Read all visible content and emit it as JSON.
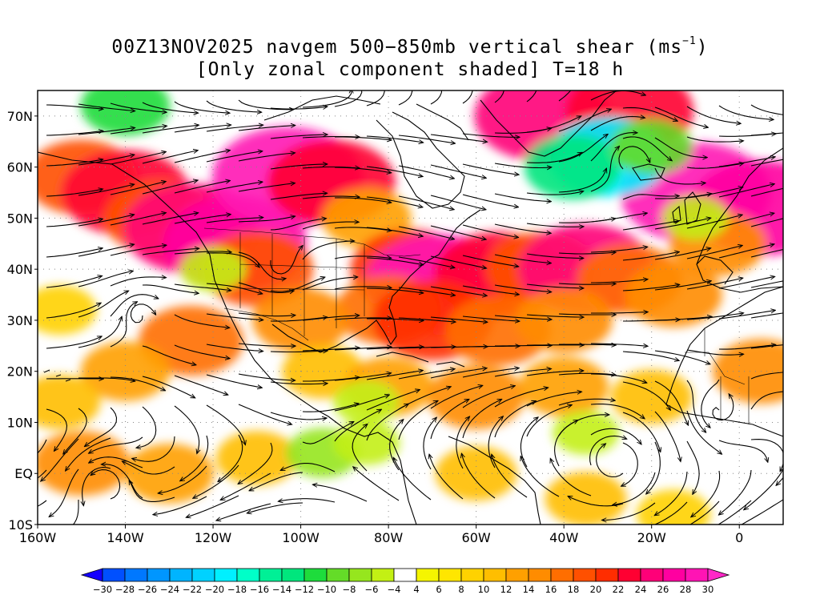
{
  "title": {
    "line1_prefix": "00Z13NOV2025 navgem 500−850mb vertical shear (ms",
    "line1_sup": "−1",
    "line1_suffix": ")",
    "line2": "[Only zonal component shaded] T=18 h"
  },
  "map": {
    "lon_range": [
      -160,
      10
    ],
    "lat_range": [
      -10,
      75
    ],
    "lat_labels": [
      {
        "lat": 70,
        "text": "70N"
      },
      {
        "lat": 60,
        "text": "60N"
      },
      {
        "lat": 50,
        "text": "50N"
      },
      {
        "lat": 40,
        "text": "40N"
      },
      {
        "lat": 30,
        "text": "30N"
      },
      {
        "lat": 20,
        "text": "20N"
      },
      {
        "lat": 10,
        "text": "10N"
      },
      {
        "lat": 0,
        "text": "EQ"
      },
      {
        "lat": -10,
        "text": "10S"
      }
    ],
    "lon_labels": [
      {
        "lon": -160,
        "text": "160W"
      },
      {
        "lon": -140,
        "text": "140W"
      },
      {
        "lon": -120,
        "text": "120W"
      },
      {
        "lon": -100,
        "text": "100W"
      },
      {
        "lon": -80,
        "text": "80W"
      },
      {
        "lon": -60,
        "text": "60W"
      },
      {
        "lon": -40,
        "text": "40W"
      },
      {
        "lon": -20,
        "text": "20W"
      },
      {
        "lon": 0,
        "text": "0"
      }
    ],
    "gridlines": "dotted every 10°"
  },
  "colorbar": {
    "labels": [
      "−30",
      "−28",
      "−26",
      "−24",
      "−22",
      "−20",
      "−18",
      "−16",
      "−14",
      "−12",
      "−10",
      "−8",
      "−6",
      "−4",
      "4",
      "6",
      "8",
      "10",
      "12",
      "14",
      "16",
      "18",
      "20",
      "22",
      "24",
      "26",
      "28",
      "30"
    ],
    "colors": [
      "#1400ff",
      "#0050ff",
      "#0078ff",
      "#0096ff",
      "#00b4ff",
      "#00d2ff",
      "#00f0ff",
      "#00ffc8",
      "#00f096",
      "#00e67d",
      "#1edc3c",
      "#64dc28",
      "#96e61e",
      "#c3f014",
      "#ffffff",
      "#f5f500",
      "#ffe600",
      "#ffd200",
      "#ffbe00",
      "#ffa000",
      "#ff8c00",
      "#ff6e00",
      "#ff5000",
      "#ff2d00",
      "#ff0032",
      "#ff0078",
      "#ff00a0",
      "#ff14b4",
      "#ff28c8"
    ]
  },
  "shading": [
    {
      "lon": -150,
      "lat": 58,
      "v": 18
    },
    {
      "lon": -140,
      "lat": 55,
      "v": 22
    },
    {
      "lon": -132,
      "lat": 50,
      "v": 18
    },
    {
      "lon": -125,
      "lat": 48,
      "v": 24
    },
    {
      "lon": -115,
      "lat": 45,
      "v": 26
    },
    {
      "lon": -110,
      "lat": 40,
      "v": 18
    },
    {
      "lon": -103,
      "lat": 58,
      "v": 28
    },
    {
      "lon": -93,
      "lat": 57,
      "v": 22
    },
    {
      "lon": -85,
      "lat": 50,
      "v": 12
    },
    {
      "lon": -75,
      "lat": 40,
      "v": 20
    },
    {
      "lon": -68,
      "lat": 37,
      "v": 28
    },
    {
      "lon": -55,
      "lat": 39,
      "v": 22
    },
    {
      "lon": -45,
      "lat": 40,
      "v": 18
    },
    {
      "lon": -35,
      "lat": 40,
      "v": 24
    },
    {
      "lon": -25,
      "lat": 38,
      "v": 16
    },
    {
      "lon": -15,
      "lat": 35,
      "v": 14
    },
    {
      "lon": -80,
      "lat": 32,
      "v": 16
    },
    {
      "lon": -70,
      "lat": 30,
      "v": 20
    },
    {
      "lon": -55,
      "lat": 28,
      "v": 16
    },
    {
      "lon": -40,
      "lat": 30,
      "v": 14
    },
    {
      "lon": -100,
      "lat": 30,
      "v": 14
    },
    {
      "lon": -125,
      "lat": 26,
      "v": 16
    },
    {
      "lon": -140,
      "lat": 20,
      "v": 12
    },
    {
      "lon": -155,
      "lat": 14,
      "v": 10
    },
    {
      "lon": -150,
      "lat": 2,
      "v": 14
    },
    {
      "lon": -130,
      "lat": 0,
      "v": 12
    },
    {
      "lon": -110,
      "lat": 3,
      "v": 10
    },
    {
      "lon": -95,
      "lat": 20,
      "v": 10
    },
    {
      "lon": -80,
      "lat": 17,
      "v": 12
    },
    {
      "lon": -60,
      "lat": 15,
      "v": 14
    },
    {
      "lon": -40,
      "lat": 17,
      "v": 12
    },
    {
      "lon": -20,
      "lat": 15,
      "v": 10
    },
    {
      "lon": 5,
      "lat": 20,
      "v": 14
    },
    {
      "lon": -60,
      "lat": 0,
      "v": 10
    },
    {
      "lon": -35,
      "lat": -5,
      "v": 10
    },
    {
      "lon": -15,
      "lat": -8,
      "v": 8
    },
    {
      "lon": -45,
      "lat": 70,
      "v": 24
    },
    {
      "lon": -25,
      "lat": 71,
      "v": 22
    },
    {
      "lon": -10,
      "lat": 55,
      "v": 28
    },
    {
      "lon": 5,
      "lat": 52,
      "v": 26
    },
    {
      "lon": -5,
      "lat": 45,
      "v": 14
    },
    {
      "lon": -30,
      "lat": 62,
      "v": -20
    },
    {
      "lon": -38,
      "lat": 60,
      "v": -14
    },
    {
      "lon": -20,
      "lat": 64,
      "v": -10
    },
    {
      "lon": -140,
      "lat": 72,
      "v": -12
    },
    {
      "lon": -95,
      "lat": 4,
      "v": -8
    },
    {
      "lon": -85,
      "lat": 6,
      "v": -6
    },
    {
      "lon": -85,
      "lat": 14,
      "v": -6
    },
    {
      "lon": -120,
      "lat": 40,
      "v": -6
    },
    {
      "lon": -35,
      "lat": 8,
      "v": -6
    },
    {
      "lon": -10,
      "lat": 50,
      "v": -6
    },
    {
      "lon": -155,
      "lat": 32,
      "v": 8
    }
  ]
}
